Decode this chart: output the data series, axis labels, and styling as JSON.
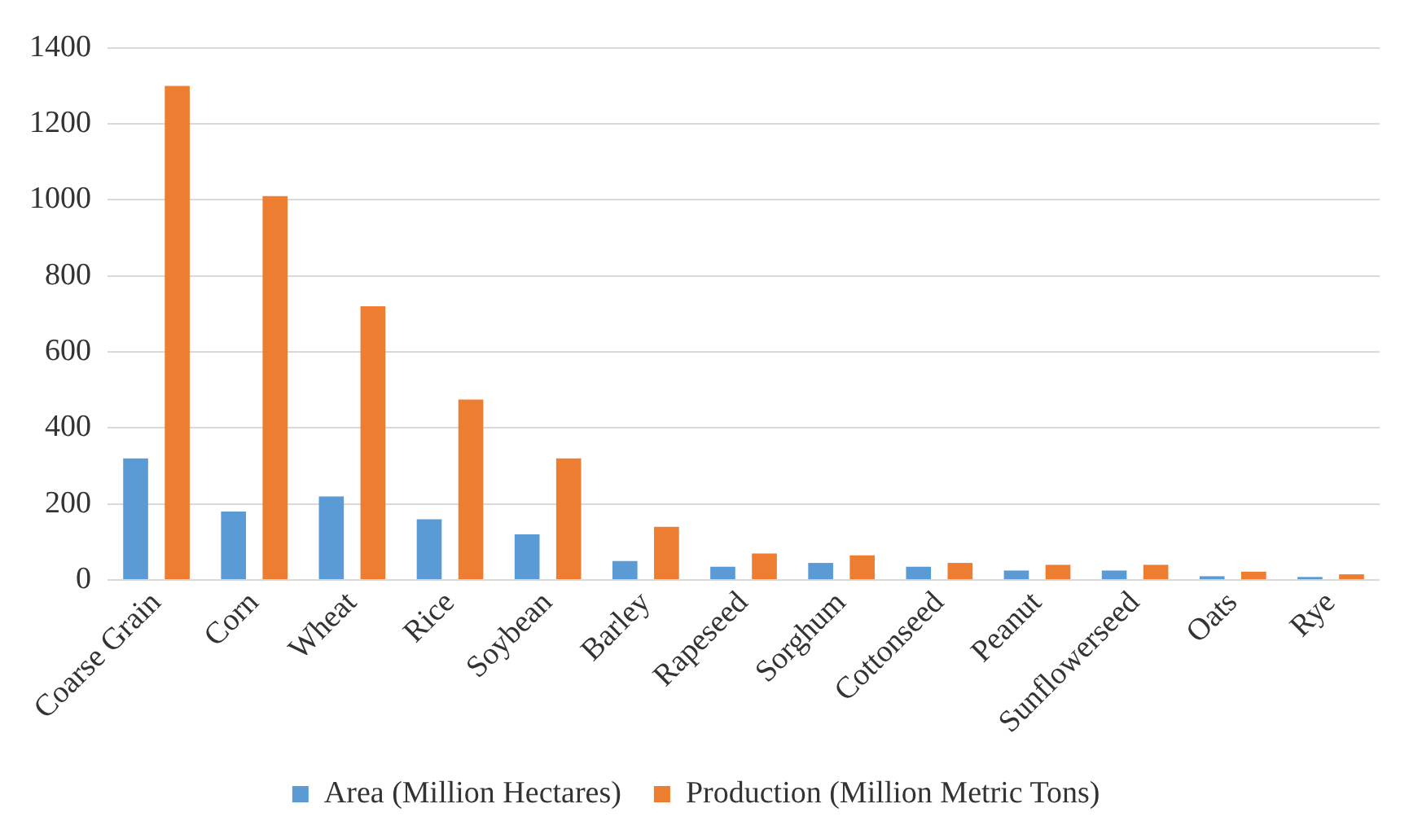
{
  "chart_data": {
    "type": "bar",
    "categories": [
      "Coarse Grain",
      "Corn",
      "Wheat",
      "Rice",
      "Soybean",
      "Barley",
      "Rapeseed",
      "Sorghum",
      "Cottonseed",
      "Peanut",
      "Sunflowerseed",
      "Oats",
      "Rye"
    ],
    "series": [
      {
        "name": "Area (Million Hectares)",
        "color": "#5b9bd5",
        "values": [
          320,
          180,
          220,
          160,
          120,
          50,
          35,
          45,
          35,
          25,
          25,
          10,
          8
        ]
      },
      {
        "name": "Production (Million Metric Tons)",
        "color": "#ed7d31",
        "values": [
          1300,
          1010,
          720,
          475,
          320,
          140,
          70,
          65,
          45,
          40,
          40,
          22,
          15
        ]
      }
    ],
    "ylim": [
      0,
      1400
    ],
    "yticks": [
      0,
      200,
      400,
      600,
      800,
      1000,
      1200,
      1400
    ],
    "grid": "y",
    "legend": "bottom"
  }
}
